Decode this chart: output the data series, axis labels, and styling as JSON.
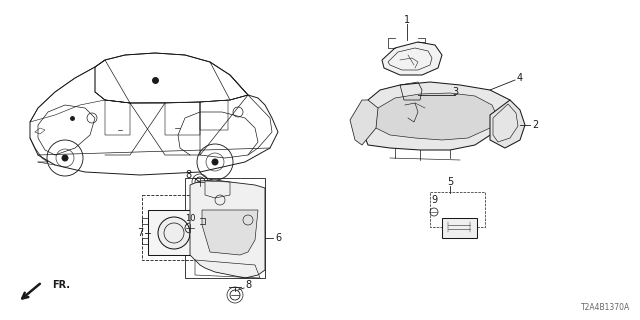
{
  "diagram_code": "T2A4B1370A",
  "background_color": "#ffffff",
  "line_color": "#1a1a1a",
  "figsize": [
    6.4,
    3.2
  ],
  "dpi": 100
}
